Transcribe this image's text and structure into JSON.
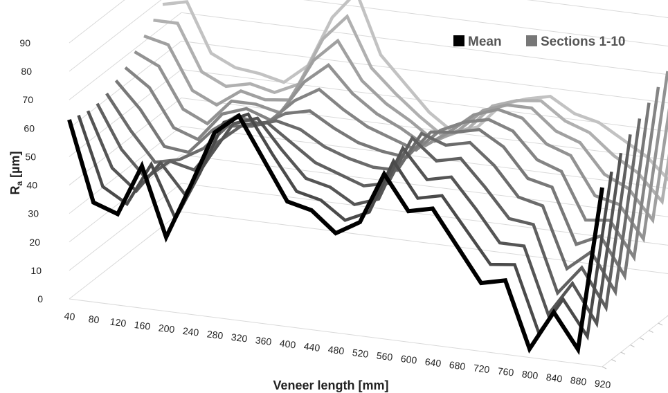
{
  "chart_data": {
    "type": "line",
    "subtype": "3d-line",
    "xlabel": "Veneer length [mm]",
    "ylabel_main": "R",
    "ylabel_sub": "a",
    "ylabel_unit": " [µm]",
    "ylim": [
      0,
      90
    ],
    "yticks": [
      "0",
      "10",
      "20",
      "30",
      "40",
      "50",
      "60",
      "70",
      "80",
      "90"
    ],
    "categories": [
      "40",
      "80",
      "120",
      "160",
      "200",
      "240",
      "280",
      "320",
      "360",
      "400",
      "440",
      "480",
      "520",
      "560",
      "600",
      "640",
      "680",
      "720",
      "760",
      "800",
      "840",
      "880",
      "920"
    ],
    "legend": [
      {
        "label": "Mean",
        "color": "#000000"
      },
      {
        "label": "Sections 1-10",
        "color": "#777777"
      }
    ],
    "legend_position": "top-right",
    "grid": true,
    "series": [
      {
        "name": "Mean",
        "color": "#000000",
        "values": [
          63,
          35,
          32,
          50,
          26,
          45,
          65,
          72,
          58,
          44,
          42,
          35,
          40,
          58,
          46,
          48,
          36,
          24,
          26,
          3,
          17,
          5,
          63
        ]
      },
      {
        "color": "#4a4a4a",
        "values": [
          62,
          38,
          33,
          48,
          30,
          47,
          66,
          70,
          57,
          45,
          43,
          37,
          41,
          60,
          48,
          50,
          39,
          28,
          29,
          6,
          19,
          7,
          66
        ]
      },
      {
        "color": "#555555",
        "values": [
          61,
          42,
          35,
          46,
          36,
          50,
          63,
          66,
          56,
          47,
          45,
          40,
          43,
          62,
          52,
          54,
          44,
          33,
          33,
          10,
          22,
          9,
          70
        ]
      },
      {
        "color": "#606060",
        "values": [
          61,
          46,
          37,
          44,
          42,
          53,
          60,
          62,
          56,
          50,
          47,
          44,
          46,
          63,
          56,
          58,
          49,
          39,
          38,
          15,
          25,
          12,
          74
        ]
      },
      {
        "color": "#6b6b6b",
        "values": [
          62,
          50,
          40,
          42,
          47,
          56,
          57,
          60,
          58,
          53,
          50,
          48,
          48,
          62,
          59,
          61,
          54,
          44,
          42,
          21,
          28,
          15,
          77
        ]
      },
      {
        "color": "#787878",
        "values": [
          64,
          55,
          43,
          42,
          51,
          57,
          55,
          60,
          62,
          57,
          53,
          51,
          50,
          60,
          61,
          63,
          58,
          48,
          46,
          27,
          31,
          18,
          80
        ]
      },
      {
        "color": "#848484",
        "values": [
          66,
          60,
          47,
          44,
          54,
          57,
          54,
          62,
          67,
          61,
          56,
          53,
          50,
          58,
          62,
          64,
          61,
          52,
          49,
          33,
          34,
          22,
          83
        ]
      },
      {
        "color": "#929292",
        "values": [
          69,
          65,
          51,
          47,
          56,
          56,
          54,
          66,
          73,
          64,
          58,
          54,
          49,
          55,
          62,
          65,
          63,
          55,
          52,
          39,
          37,
          26,
          86
        ]
      },
      {
        "color": "#a0a0a0",
        "values": [
          72,
          70,
          55,
          51,
          57,
          55,
          56,
          71,
          79,
          66,
          59,
          54,
          48,
          53,
          61,
          64,
          64,
          57,
          54,
          44,
          40,
          30,
          88
        ]
      },
      {
        "color": "#b0b0b0",
        "values": [
          75,
          75,
          59,
          55,
          57,
          55,
          59,
          76,
          85,
          68,
          60,
          53,
          47,
          51,
          60,
          63,
          64,
          58,
          55,
          48,
          43,
          34,
          90
        ]
      },
      {
        "color": "#c2c2c2",
        "values": [
          78,
          80,
          63,
          59,
          58,
          56,
          63,
          81,
          91,
          70,
          61,
          52,
          46,
          49,
          58,
          61,
          63,
          58,
          56,
          51,
          46,
          38,
          91
        ]
      }
    ]
  }
}
